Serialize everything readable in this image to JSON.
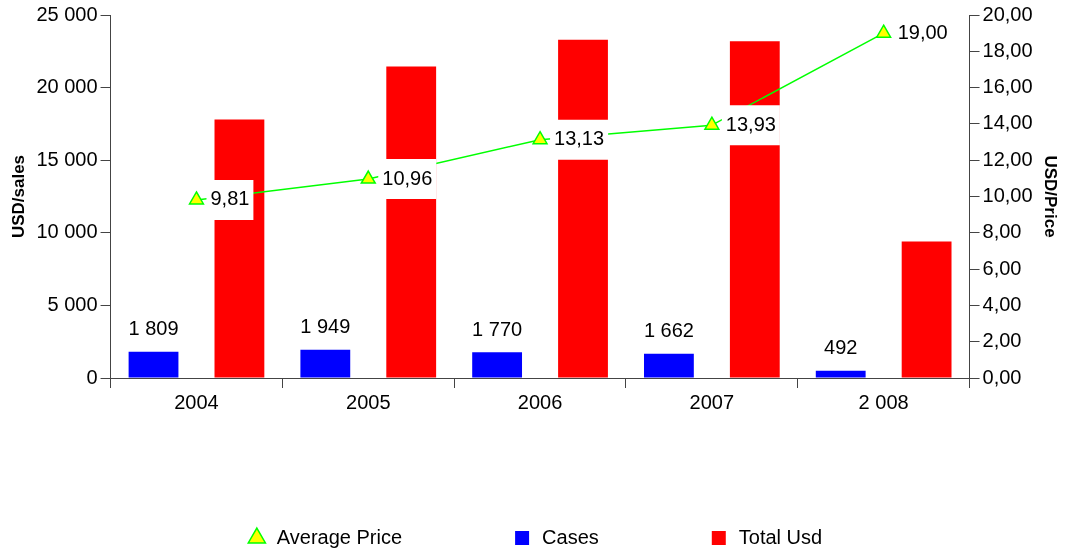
{
  "chart_data": {
    "type": "bar",
    "ylabel": "USD/sales",
    "y2label": "USD/Price",
    "categories": [
      "2004",
      "2005",
      "2006",
      "2007",
      "2 008"
    ],
    "series": [
      {
        "name": "Cases",
        "color": "#0000ff",
        "values": [
          1809,
          1949,
          1770,
          1662,
          492
        ],
        "value_labels": [
          "1 809",
          "1 949",
          "1 770",
          "1 662",
          "492"
        ]
      },
      {
        "name": "Total Usd",
        "color": "#ff0000",
        "values": [
          17800,
          21450,
          23300,
          23200,
          9400
        ]
      },
      {
        "name": "Average Price",
        "type": "line",
        "axis": "y2",
        "color": "#00ff00",
        "values": [
          9.81,
          10.96,
          13.13,
          13.93,
          19.0
        ],
        "value_labels": [
          "9,81",
          "10,96",
          "13,13",
          "13,93",
          "19,00"
        ]
      }
    ],
    "ylim": [
      0,
      25000
    ],
    "yticks": [
      {
        "value": 0,
        "label": "0"
      },
      {
        "value": 5000,
        "label": "5 000"
      },
      {
        "value": 10000,
        "label": "10 000"
      },
      {
        "value": 15000,
        "label": "15 000"
      },
      {
        "value": 20000,
        "label": "20 000"
      },
      {
        "value": 25000,
        "label": "25 000"
      }
    ],
    "y2lim": [
      0,
      20
    ],
    "y2ticks": [
      {
        "value": 0,
        "label": "0,00"
      },
      {
        "value": 2,
        "label": "2,00"
      },
      {
        "value": 4,
        "label": "4,00"
      },
      {
        "value": 6,
        "label": "6,00"
      },
      {
        "value": 8,
        "label": "8,00"
      },
      {
        "value": 10,
        "label": "10,00"
      },
      {
        "value": 12,
        "label": "12,00"
      },
      {
        "value": 14,
        "label": "14,00"
      },
      {
        "value": 16,
        "label": "16,00"
      },
      {
        "value": 18,
        "label": "18,00"
      },
      {
        "value": 20,
        "label": "20,00"
      }
    ],
    "grid": false,
    "legend": "bottom",
    "marker": "triangle"
  }
}
